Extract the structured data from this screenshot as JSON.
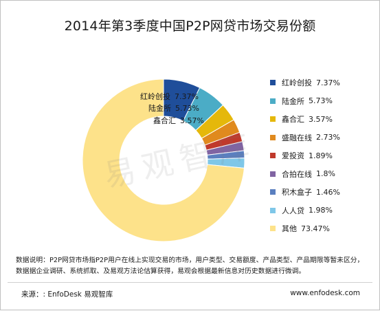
{
  "chart_data": {
    "type": "pie",
    "title": "2014年第3季度中国P2P网贷市场交易份额",
    "categories": [
      "红岭创投",
      "陆金所",
      "鑫合汇",
      "盛融在线",
      "爱投资",
      "合拍在线",
      "积木盒子",
      "人人贷",
      "其他"
    ],
    "values": [
      7.37,
      5.73,
      3.57,
      2.73,
      1.89,
      1.8,
      1.46,
      1.98,
      73.47
    ],
    "value_labels": [
      "7.37%",
      "5.73%",
      "3.57%",
      "2.73%",
      "1.89%",
      "1.8%",
      "1.46%",
      "1.98%",
      "73.47%"
    ],
    "colors": [
      "#1f4e9a",
      "#4bacc6",
      "#e5b80b",
      "#e08a1e",
      "#c0392b",
      "#8064a2",
      "#5a7fbf",
      "#7fc7e8",
      "#fde28a"
    ],
    "donut": true,
    "legend_position": "right",
    "inside_labels": [
      {
        "name": "红岭创投",
        "value": "7.37%"
      },
      {
        "name": "陆金所",
        "value": "5.73%"
      },
      {
        "name": "鑫合汇",
        "value": "3.57%"
      }
    ]
  },
  "watermark": "易观智库",
  "note": "数据说明：P2P网贷市场指P2P用户在线上实现交易的市场，用户类型、交易额度、产品类型、产品期限等暂未区分，数据据企业调研、系统抓取、及易观方法论估算获得，易观会根据最新信息对历史数据进行微调。",
  "source": "来源：: EnfoDesk 易观智库",
  "site": "www.enfodesk.com"
}
